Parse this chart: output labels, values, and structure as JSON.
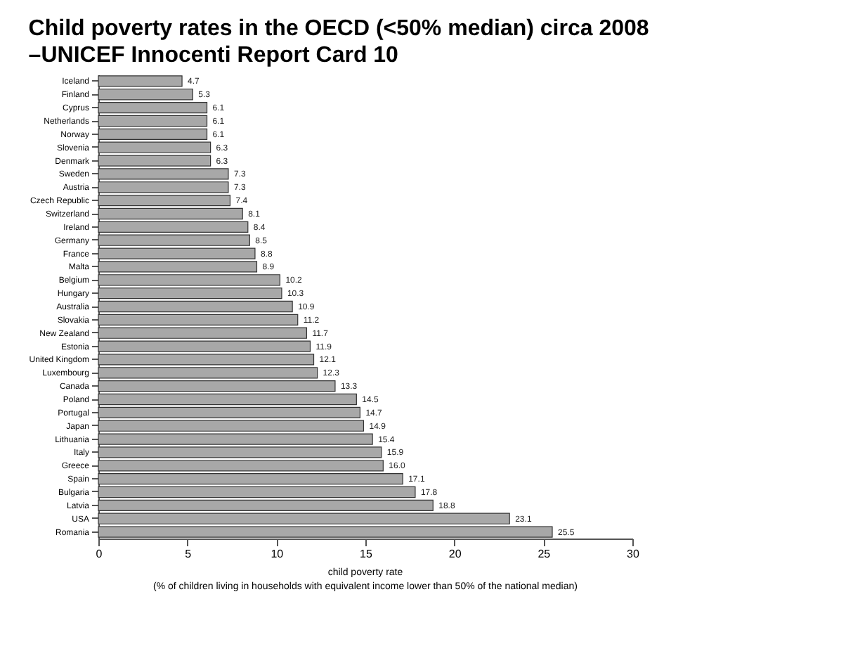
{
  "chart_data": {
    "type": "bar",
    "orientation": "horizontal",
    "title": "Child poverty rates in the OECD (<50% median) circa 2008 –UNICEF Innocenti Report Card 10",
    "categories": [
      "Iceland",
      "Finland",
      "Cyprus",
      "Netherlands",
      "Norway",
      "Slovenia",
      "Denmark",
      "Sweden",
      "Austria",
      "Czech Republic",
      "Switzerland",
      "Ireland",
      "Germany",
      "France",
      "Malta",
      "Belgium",
      "Hungary",
      "Australia",
      "Slovakia",
      "New Zealand",
      "Estonia",
      "United Kingdom",
      "Luxembourg",
      "Canada",
      "Poland",
      "Portugal",
      "Japan",
      "Lithuania",
      "Italy",
      "Greece",
      "Spain",
      "Bulgaria",
      "Latvia",
      "USA",
      "Romania"
    ],
    "values": [
      4.7,
      5.3,
      6.1,
      6.1,
      6.1,
      6.3,
      6.3,
      7.3,
      7.3,
      7.4,
      8.1,
      8.4,
      8.5,
      8.8,
      8.9,
      10.2,
      10.3,
      10.9,
      11.2,
      11.7,
      11.9,
      12.1,
      12.3,
      13.3,
      14.5,
      14.7,
      14.9,
      15.4,
      15.9,
      16.0,
      17.1,
      17.8,
      18.8,
      23.1,
      25.5
    ],
    "value_labels": [
      "4.7",
      "5.3",
      "6.1",
      "6.1",
      "6.1",
      "6.3",
      "6.3",
      "7.3",
      "7.3",
      "7.4",
      "8.1",
      "8.4",
      "8.5",
      "8.8",
      "8.9",
      "10.2",
      "10.3",
      "10.9",
      "11.2",
      "11.7",
      "11.9",
      "12.1",
      "12.3",
      "13.3",
      "14.5",
      "14.7",
      "14.9",
      "15.4",
      "15.9",
      "16.0",
      "17.1",
      "17.8",
      "18.8",
      "23.1",
      "25.5"
    ],
    "color": "#a8a8a8",
    "xlabel": "child poverty rate",
    "annotations": [
      "(% of children living in households with equivalent income lower than 50% of the national median)"
    ],
    "xlim": [
      0,
      30
    ],
    "xticks": [
      0,
      5,
      10,
      15,
      20,
      25,
      30
    ],
    "grid": false
  }
}
